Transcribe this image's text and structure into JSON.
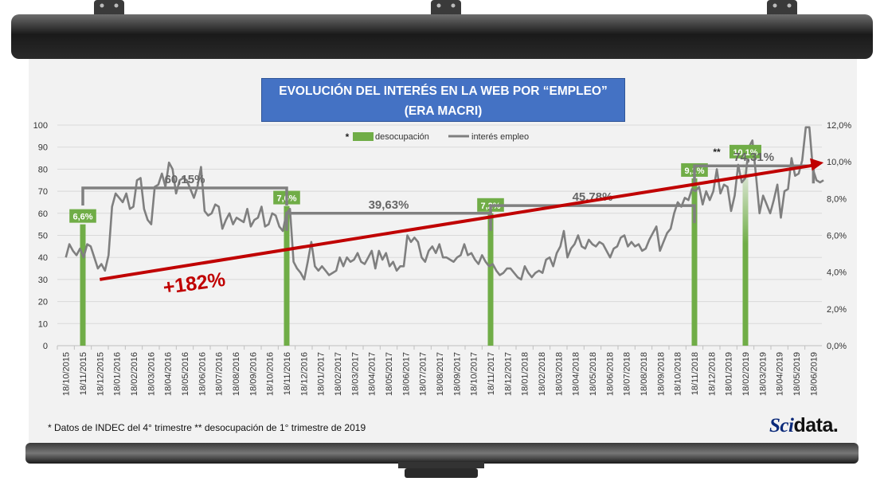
{
  "title_line1": "EVOLUCIÓN DEL INTERÉS EN LA WEB POR “EMPLEO”",
  "title_line2": "(ERA MACRI)",
  "footnote": "* Datos de INDEC del 4° trimestre  ** desocupación de 1° trimestre de 2019",
  "brand": {
    "part1": "Sci",
    "part2": "data."
  },
  "legend": {
    "bar_marker": "*",
    "bar_label": "desocupación",
    "line_label": "interés empleo"
  },
  "colors": {
    "bar": "#70ad47",
    "line": "#7f7f7f",
    "trend": "#c00000",
    "bracket": "#808080",
    "title_bg": "#4472c4"
  },
  "growth_label": "+182%",
  "trend_percent": 182,
  "chart_data": {
    "type": "line",
    "title": "EVOLUCIÓN DEL INTERÉS EN LA WEB POR “EMPLEO” (ERA MACRI)",
    "y_left": {
      "min": 0,
      "max": 100,
      "step": 10,
      "ticks": [
        "0",
        "10",
        "20",
        "30",
        "40",
        "50",
        "60",
        "70",
        "80",
        "90",
        "100"
      ]
    },
    "y_right": {
      "min": 0,
      "max": 12,
      "ticks": [
        "0,0%",
        "2,0%",
        "4,0%",
        "6,0%",
        "8,0%",
        "10,0%",
        "12,0%"
      ]
    },
    "x_labels": [
      "18/10/2015",
      "18/11/2015",
      "18/12/2015",
      "18/01/2016",
      "18/02/2016",
      "18/03/2016",
      "18/04/2016",
      "18/05/2016",
      "18/06/2016",
      "18/07/2016",
      "18/08/2016",
      "18/09/2016",
      "18/10/2016",
      "18/11/2016",
      "18/12/2016",
      "18/01/2017",
      "18/02/2017",
      "18/03/2017",
      "18/04/2017",
      "18/05/2017",
      "18/06/2017",
      "18/07/2017",
      "18/08/2017",
      "18/09/2017",
      "18/10/2017",
      "18/11/2017",
      "18/12/2017",
      "18/01/2018",
      "18/02/2018",
      "18/03/2018",
      "18/04/2018",
      "18/05/2018",
      "18/06/2018",
      "18/07/2018",
      "18/08/2018",
      "18/09/2018",
      "18/10/2018",
      "18/11/2018",
      "18/12/2018",
      "18/01/2019",
      "18/02/2019",
      "18/03/2019",
      "18/04/2019",
      "18/05/2019",
      "18/06/2019"
    ],
    "grid": true,
    "series": [
      {
        "name": "interés empleo",
        "axis": "left",
        "values": [
          40,
          46,
          43,
          41,
          44,
          40,
          46,
          45,
          40,
          35,
          37,
          34,
          41,
          63,
          69,
          67,
          65,
          69,
          62,
          63,
          75,
          76,
          62,
          57,
          55,
          72,
          73,
          78,
          72,
          83,
          80,
          69,
          75,
          76,
          75,
          71,
          67,
          72,
          81,
          61,
          59,
          60,
          64,
          63,
          53,
          57,
          60,
          55,
          58,
          57,
          56,
          62,
          54,
          57,
          58,
          63,
          54,
          55,
          60,
          59,
          54,
          52,
          60,
          62,
          38,
          35,
          33,
          30,
          38,
          47,
          36,
          34,
          36,
          34,
          32,
          33,
          34,
          40,
          36,
          40,
          38,
          39,
          42,
          38,
          37,
          40,
          43,
          35,
          43,
          39,
          42,
          36,
          38,
          34,
          36,
          36,
          50,
          47,
          49,
          47,
          40,
          38,
          43,
          45,
          42,
          46,
          40,
          40,
          39,
          38,
          40,
          41,
          46,
          41,
          42,
          39,
          37,
          41,
          38,
          36,
          37,
          34,
          32,
          33,
          35,
          35,
          33,
          31,
          30,
          36,
          33,
          31,
          33,
          34,
          33,
          39,
          40,
          36,
          42,
          45,
          52,
          40,
          44,
          46,
          50,
          45,
          44,
          48,
          46,
          45,
          47,
          46,
          43,
          40,
          44,
          45,
          49,
          50,
          45,
          47,
          45,
          46,
          43,
          44,
          48,
          51,
          54,
          43,
          47,
          51,
          53,
          60,
          65,
          63,
          67,
          66,
          71,
          70,
          72,
          64,
          70,
          66,
          70,
          80,
          69,
          73,
          72,
          61,
          68,
          82,
          74,
          76,
          90,
          93,
          77,
          60,
          68,
          64,
          60,
          66,
          73,
          58,
          70,
          71,
          85,
          77,
          78,
          84,
          99,
          99,
          80,
          75,
          74,
          75
        ]
      },
      {
        "name": "desocupación",
        "type": "bar",
        "axis": "right",
        "points": [
          {
            "x": "18/11/2015",
            "value": 6.6,
            "label": "6,6%",
            "marker": ""
          },
          {
            "x": "18/11/2016",
            "value": 7.6,
            "label": "7,6%",
            "marker": ""
          },
          {
            "x": "18/11/2017",
            "value": 7.2,
            "label": "7,2%",
            "marker": ""
          },
          {
            "x": "18/11/2018",
            "value": 9.1,
            "label": "9,1%",
            "marker": ""
          },
          {
            "x": "18/02/2019",
            "value": 10.1,
            "label": "10,1%",
            "marker": "**"
          }
        ]
      }
    ],
    "annotations": [
      {
        "text": "60,15%",
        "from": "18/11/2015",
        "to": "18/11/2016",
        "level": 71.5
      },
      {
        "text": "39,63%",
        "from": "18/11/2016",
        "to": "18/11/2017",
        "level": 60.0
      },
      {
        "text": "45,78%",
        "from": "18/11/2017",
        "to": "18/11/2018",
        "level": 63.5
      },
      {
        "text": "74,31%",
        "from": "18/11/2018",
        "to": "18/06/2019",
        "level": 81.5
      }
    ],
    "trend": {
      "from_x": 2,
      "from_y": 30,
      "to_x": 44.6,
      "to_y": 83
    }
  }
}
